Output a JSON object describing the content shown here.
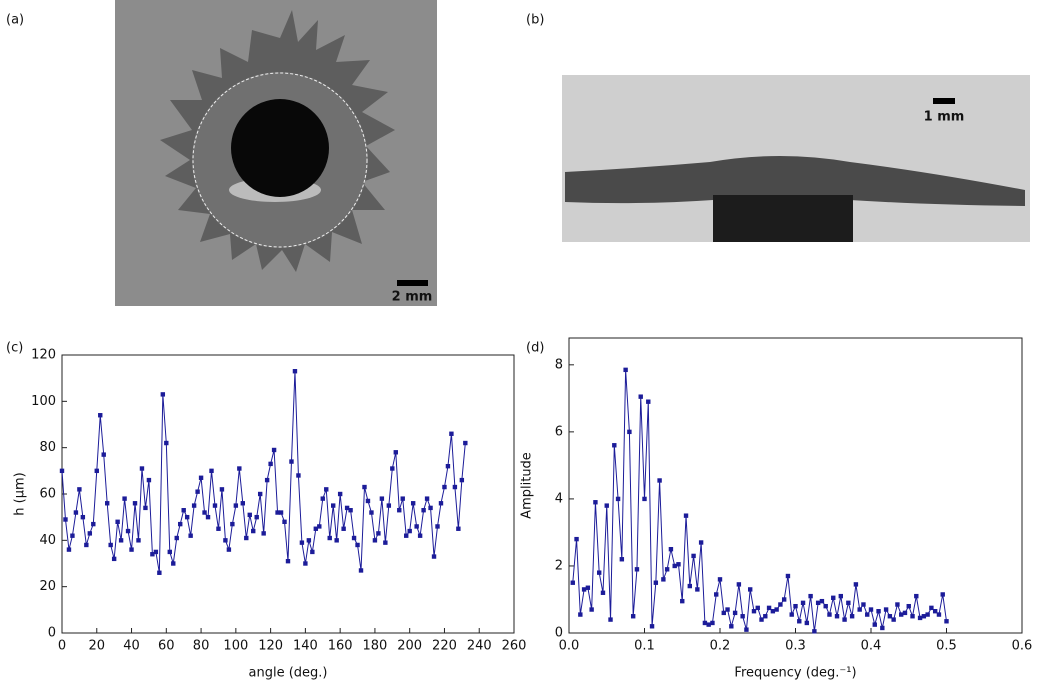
{
  "panels": {
    "a": "(a)",
    "b": "(b)",
    "c": "(c)",
    "d": "(d)"
  },
  "scale_bars": {
    "a": "2 mm",
    "b": "1 mm"
  },
  "chart_data": [
    {
      "type": "line",
      "ylabel": "h (μm)",
      "xlabel": "angle (deg.)",
      "color": "#1c1c99",
      "xlim": [
        0,
        260
      ],
      "xticks": [
        0,
        20,
        40,
        60,
        80,
        100,
        120,
        140,
        160,
        180,
        200,
        220,
        240,
        260
      ],
      "ylim": [
        0,
        120
      ],
      "yticks": [
        0,
        20,
        40,
        60,
        80,
        100,
        120
      ],
      "x": [
        0,
        2,
        4,
        6,
        8,
        10,
        12,
        14,
        16,
        18,
        20,
        22,
        24,
        26,
        28,
        30,
        32,
        34,
        36,
        38,
        40,
        42,
        44,
        46,
        48,
        50,
        52,
        54,
        56,
        58,
        60,
        62,
        64,
        66,
        68,
        70,
        72,
        74,
        76,
        78,
        80,
        82,
        84,
        86,
        88,
        90,
        92,
        94,
        96,
        98,
        100,
        102,
        104,
        106,
        108,
        110,
        112,
        114,
        116,
        118,
        120,
        122,
        124,
        126,
        128,
        130,
        132,
        134,
        136,
        138,
        140,
        142,
        144,
        146,
        148,
        150,
        152,
        154,
        156,
        158,
        160,
        162,
        164,
        166,
        168,
        170,
        172,
        174,
        176,
        178,
        180,
        182,
        184,
        186,
        188,
        190,
        192,
        194,
        196,
        198,
        200,
        202,
        204,
        206,
        208,
        210,
        212,
        214,
        216,
        218,
        220,
        222,
        224,
        226,
        228,
        230,
        232
      ],
      "values": [
        70,
        49,
        36,
        42,
        52,
        62,
        50,
        38,
        43,
        47,
        70,
        94,
        77,
        56,
        38,
        32,
        48,
        40,
        58,
        44,
        36,
        56,
        40,
        71,
        54,
        66,
        34,
        35,
        26,
        103,
        82,
        35,
        30,
        41,
        47,
        53,
        50,
        42,
        55,
        61,
        67,
        52,
        50,
        70,
        55,
        45,
        62,
        40,
        36,
        47,
        55,
        71,
        56,
        41,
        51,
        44,
        50,
        60,
        43,
        66,
        73,
        79,
        52,
        52,
        48,
        31,
        74,
        113,
        68,
        39,
        30,
        40,
        35,
        45,
        46,
        58,
        62,
        41,
        55,
        40,
        60,
        45,
        54,
        53,
        41,
        38,
        27,
        63,
        57,
        52,
        40,
        43,
        58,
        39,
        55,
        71,
        78,
        53,
        58,
        42,
        44,
        56,
        46,
        42,
        53,
        58,
        54,
        33,
        46,
        56,
        63,
        72,
        86,
        63,
        45,
        66,
        82
      ]
    },
    {
      "type": "line",
      "ylabel": "Amplitude",
      "xlabel": "Frequency (deg.⁻¹)",
      "color": "#1c1c99",
      "xlim": [
        0,
        0.6
      ],
      "xticks": [
        {
          "value": 0,
          "label": "0.0"
        },
        0.1,
        0.2,
        0.3,
        0.4,
        0.5,
        0.6
      ],
      "ylim": [
        0,
        8.8
      ],
      "yticks": [
        0,
        2,
        4,
        6,
        8
      ],
      "x": [
        0.005,
        0.01,
        0.015,
        0.02,
        0.025,
        0.03,
        0.035,
        0.04,
        0.045,
        0.05,
        0.055,
        0.06,
        0.065,
        0.07,
        0.075,
        0.08,
        0.085,
        0.09,
        0.095,
        0.1,
        0.105,
        0.11,
        0.115,
        0.12,
        0.125,
        0.13,
        0.135,
        0.14,
        0.145,
        0.15,
        0.155,
        0.16,
        0.165,
        0.17,
        0.175,
        0.18,
        0.185,
        0.19,
        0.195,
        0.2,
        0.205,
        0.21,
        0.215,
        0.22,
        0.225,
        0.23,
        0.235,
        0.24,
        0.245,
        0.25,
        0.255,
        0.26,
        0.265,
        0.27,
        0.275,
        0.28,
        0.285,
        0.29,
        0.295,
        0.3,
        0.305,
        0.31,
        0.315,
        0.32,
        0.325,
        0.33,
        0.335,
        0.34,
        0.345,
        0.35,
        0.355,
        0.36,
        0.365,
        0.37,
        0.375,
        0.38,
        0.385,
        0.39,
        0.395,
        0.4,
        0.405,
        0.41,
        0.415,
        0.42,
        0.425,
        0.43,
        0.435,
        0.44,
        0.445,
        0.45,
        0.455,
        0.46,
        0.465,
        0.47,
        0.475,
        0.48,
        0.485,
        0.49,
        0.495,
        0.5
      ],
      "values": [
        1.5,
        2.8,
        0.55,
        1.3,
        1.35,
        0.7,
        3.9,
        1.8,
        1.2,
        3.8,
        0.4,
        5.6,
        4.0,
        2.2,
        7.85,
        6.0,
        0.5,
        1.9,
        7.05,
        4.0,
        6.9,
        0.2,
        1.5,
        4.55,
        1.6,
        1.9,
        2.5,
        2.0,
        2.05,
        0.95,
        3.5,
        1.4,
        2.3,
        1.3,
        2.7,
        0.3,
        0.25,
        0.3,
        1.15,
        1.6,
        0.6,
        0.7,
        0.2,
        0.6,
        1.45,
        0.5,
        0.1,
        1.3,
        0.65,
        0.75,
        0.4,
        0.5,
        0.75,
        0.65,
        0.7,
        0.85,
        1.0,
        1.7,
        0.55,
        0.8,
        0.35,
        0.9,
        0.3,
        1.1,
        0.05,
        0.9,
        0.95,
        0.8,
        0.55,
        1.05,
        0.5,
        1.1,
        0.4,
        0.9,
        0.5,
        1.45,
        0.7,
        0.85,
        0.55,
        0.7,
        0.25,
        0.65,
        0.15,
        0.7,
        0.5,
        0.4,
        0.85,
        0.55,
        0.6,
        0.8,
        0.5,
        1.1,
        0.45,
        0.5,
        0.55,
        0.75,
        0.65,
        0.55,
        1.15,
        0.35
      ]
    }
  ]
}
